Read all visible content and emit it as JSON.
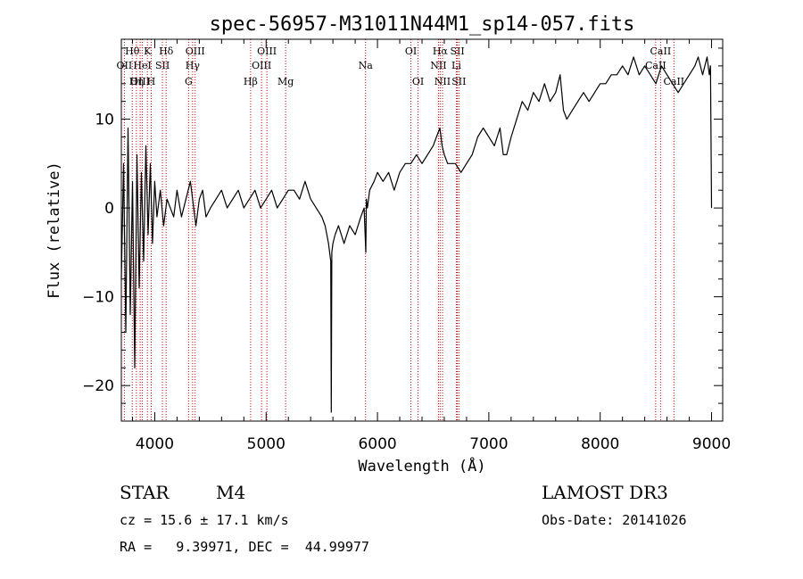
{
  "chart_data": {
    "type": "line",
    "title": "spec-56957-M31011N44M1_sp14-057.fits",
    "xlabel": "Wavelength (Å)",
    "ylabel": "Flux (relative)",
    "xlim": [
      3700,
      9100
    ],
    "ylim": [
      -24,
      19
    ],
    "xticks": [
      4000,
      5000,
      6000,
      7000,
      8000,
      9000
    ],
    "yticks": [
      -20,
      -10,
      0,
      10
    ],
    "series": [
      {
        "name": "flux",
        "x": [
          3700,
          3720,
          3740,
          3760,
          3780,
          3800,
          3820,
          3840,
          3860,
          3880,
          3900,
          3920,
          3940,
          3960,
          3980,
          4000,
          4020,
          4050,
          4080,
          4110,
          4140,
          4170,
          4200,
          4240,
          4280,
          4320,
          4350,
          4370,
          4400,
          4430,
          4460,
          4500,
          4550,
          4600,
          4650,
          4700,
          4750,
          4800,
          4850,
          4900,
          4950,
          5000,
          5050,
          5100,
          5150,
          5200,
          5250,
          5300,
          5350,
          5400,
          5450,
          5500,
          5530,
          5560,
          5580,
          5585,
          5590,
          5600,
          5620,
          5650,
          5700,
          5750,
          5800,
          5850,
          5880,
          5895,
          5900,
          5910,
          5930,
          5970,
          6000,
          6050,
          6100,
          6150,
          6200,
          6250,
          6300,
          6350,
          6400,
          6450,
          6500,
          6530,
          6560,
          6580,
          6600,
          6630,
          6660,
          6700,
          6750,
          6800,
          6850,
          6900,
          6950,
          7000,
          7050,
          7100,
          7130,
          7160,
          7200,
          7250,
          7300,
          7350,
          7400,
          7450,
          7500,
          7550,
          7600,
          7640,
          7670,
          7700,
          7750,
          7800,
          7850,
          7900,
          7950,
          8000,
          8050,
          8100,
          8150,
          8200,
          8250,
          8300,
          8350,
          8400,
          8450,
          8500,
          8550,
          8600,
          8650,
          8700,
          8750,
          8800,
          8850,
          8880,
          8900,
          8920,
          8940,
          8960,
          8980,
          8990,
          9000
        ],
        "y": [
          -8,
          5,
          -14,
          9,
          -12,
          3,
          -18,
          6,
          -9,
          4,
          -6,
          7,
          -3,
          5,
          -4,
          3,
          -1,
          2,
          -2,
          1,
          0,
          -1,
          2,
          -1,
          1,
          3,
          0,
          -2,
          1,
          2,
          -1,
          0,
          1,
          2,
          0,
          1,
          2,
          0,
          1,
          2,
          0,
          1,
          2,
          0,
          1,
          2,
          2,
          1,
          3,
          1,
          0,
          -1,
          -2,
          -4,
          -6,
          -23,
          -5,
          -4,
          -3,
          -2,
          -4,
          -2,
          -3,
          -1,
          0,
          -5,
          1,
          0,
          2,
          3,
          4,
          3,
          4,
          2,
          4,
          5,
          5,
          6,
          5,
          6,
          7,
          8,
          9,
          7,
          6,
          5,
          5,
          5,
          4,
          5,
          6,
          8,
          9,
          8,
          7,
          9,
          6,
          6,
          8,
          10,
          12,
          11,
          13,
          12,
          14,
          12,
          13,
          15,
          11,
          10,
          11,
          12,
          13,
          12,
          13,
          14,
          14,
          15,
          15,
          16,
          15,
          17,
          15,
          16,
          15,
          14,
          16,
          15,
          14,
          13,
          14,
          15,
          16,
          17,
          16,
          15,
          16,
          17,
          15,
          16,
          0
        ]
      }
    ],
    "lines": [
      {
        "label": "Hθ",
        "x": 3798,
        "row": 1
      },
      {
        "label": "OII",
        "x": 3727,
        "row": 2
      },
      {
        "label": "OIII",
        "x": 3869,
        "row": 3
      },
      {
        "label": "K",
        "x": 3934,
        "row": 1
      },
      {
        "label": "HeI",
        "x": 3889,
        "row": 2
      },
      {
        "label": "Hη",
        "x": 3835,
        "row": 3
      },
      {
        "label": "SII",
        "x": 4069,
        "row": 2
      },
      {
        "label": "H",
        "x": 3968,
        "row": 3
      },
      {
        "label": "Hδ",
        "x": 4102,
        "row": 1
      },
      {
        "label": "OIII",
        "x": 4363,
        "row": 1
      },
      {
        "label": "Hγ",
        "x": 4340,
        "row": 2
      },
      {
        "label": "G",
        "x": 4304,
        "row": 3
      },
      {
        "label": "OIII",
        "x": 5007,
        "row": 1
      },
      {
        "label": "OIII",
        "x": 4959,
        "row": 2
      },
      {
        "label": "Hβ",
        "x": 4861,
        "row": 3
      },
      {
        "label": "Mg",
        "x": 5175,
        "row": 3
      },
      {
        "label": "Na",
        "x": 5893,
        "row": 2
      },
      {
        "label": "OI",
        "x": 6300,
        "row": 1
      },
      {
        "label": "OI",
        "x": 6364,
        "row": 3
      },
      {
        "label": "Hα",
        "x": 6563,
        "row": 1
      },
      {
        "label": "NII",
        "x": 6548,
        "row": 2
      },
      {
        "label": "NII",
        "x": 6584,
        "row": 3
      },
      {
        "label": "SII",
        "x": 6717,
        "row": 1
      },
      {
        "label": "Li",
        "x": 6708,
        "row": 2
      },
      {
        "label": "SII",
        "x": 6731,
        "row": 3
      },
      {
        "label": "CaII",
        "x": 8542,
        "row": 1
      },
      {
        "label": "CaII",
        "x": 8498,
        "row": 2
      },
      {
        "label": "CaII",
        "x": 8662,
        "row": 3
      }
    ]
  },
  "info": {
    "class_label": "STAR",
    "subclass": "M4",
    "survey": "LAMOST DR3",
    "cz_label": "cz = 15.6 ± 17.1 km/s",
    "obs_date": "Obs-Date: 20141026",
    "coords": "RA =   9.39971, DEC =  44.99977"
  },
  "colors": {
    "line": "#000000",
    "marker": "#cc0000",
    "axis": "#000000"
  }
}
